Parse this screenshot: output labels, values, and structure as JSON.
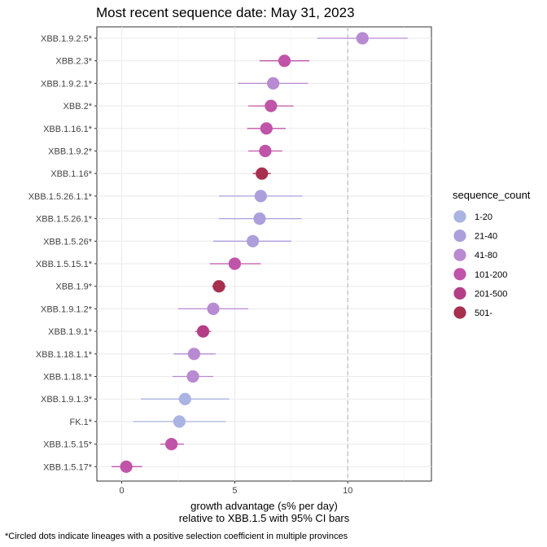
{
  "chart_data": {
    "type": "scatter",
    "title": "Most recent sequence date: May 31, 2023",
    "xlabel_line1": "growth advantage (s% per day)",
    "xlabel_line2": "relative to  XBB.1.5  with 95% CI bars",
    "xlim": [
      -1.1,
      13.7
    ],
    "x_ticks": [
      0,
      5,
      10
    ],
    "reference_line_x": 10,
    "grid": true,
    "legend_position": "right",
    "legend_title": "sequence_count",
    "legend": [
      {
        "label": "1-20",
        "color": "#aab4e2"
      },
      {
        "label": "21-40",
        "color": "#ad9fdc"
      },
      {
        "label": "41-80",
        "color": "#b88ad2"
      },
      {
        "label": "101-200",
        "color": "#c054a8"
      },
      {
        "label": "201-500",
        "color": "#b43e86"
      },
      {
        "label": "501-",
        "color": "#a6304e"
      }
    ],
    "points": [
      {
        "lineage": "XBB.1.9.2.5*",
        "value": 10.65,
        "lo": 8.65,
        "hi": 12.65,
        "group": 2
      },
      {
        "lineage": "XBB.2.3*",
        "value": 7.2,
        "lo": 6.1,
        "hi": 8.3,
        "group": 3
      },
      {
        "lineage": "XBB.1.9.2.1*",
        "value": 6.7,
        "lo": 5.15,
        "hi": 8.25,
        "group": 2
      },
      {
        "lineage": "XBB.2*",
        "value": 6.6,
        "lo": 5.6,
        "hi": 7.6,
        "group": 3
      },
      {
        "lineage": "XBB.1.16.1*",
        "value": 6.4,
        "lo": 5.55,
        "hi": 7.25,
        "group": 3
      },
      {
        "lineage": "XBB.1.9.2*",
        "value": 6.35,
        "lo": 5.6,
        "hi": 7.1,
        "group": 3
      },
      {
        "lineage": "XBB.1.16*",
        "value": 6.2,
        "lo": 5.8,
        "hi": 6.6,
        "group": 5
      },
      {
        "lineage": "XBB.1.5.26.1.1*",
        "value": 6.15,
        "lo": 4.3,
        "hi": 8.0,
        "group": 1
      },
      {
        "lineage": "XBB.1.5.26.1*",
        "value": 6.1,
        "lo": 4.3,
        "hi": 7.95,
        "group": 1
      },
      {
        "lineage": "XBB.1.5.26*",
        "value": 5.8,
        "lo": 4.05,
        "hi": 7.5,
        "group": 1
      },
      {
        "lineage": "XBB.1.5.15.1*",
        "value": 5.0,
        "lo": 3.9,
        "hi": 6.15,
        "group": 3
      },
      {
        "lineage": "XBB.1.9*",
        "value": 4.3,
        "lo": 4.0,
        "hi": 4.6,
        "group": 5
      },
      {
        "lineage": "XBB.1.9.1.2*",
        "value": 4.05,
        "lo": 2.5,
        "hi": 5.6,
        "group": 2
      },
      {
        "lineage": "XBB.1.9.1*",
        "value": 3.6,
        "lo": 3.25,
        "hi": 3.95,
        "group": 4
      },
      {
        "lineage": "XBB.1.18.1.1*",
        "value": 3.2,
        "lo": 2.3,
        "hi": 4.15,
        "group": 2
      },
      {
        "lineage": "XBB.1.18.1*",
        "value": 3.15,
        "lo": 2.25,
        "hi": 4.05,
        "group": 2
      },
      {
        "lineage": "XBB.1.9.1.3*",
        "value": 2.8,
        "lo": 0.85,
        "hi": 4.75,
        "group": 0
      },
      {
        "lineage": "FK.1*",
        "value": 2.55,
        "lo": 0.5,
        "hi": 4.6,
        "group": 0
      },
      {
        "lineage": "XBB.1.5.15*",
        "value": 2.2,
        "lo": 1.7,
        "hi": 2.75,
        "group": 3
      },
      {
        "lineage": "XBB.1.5.17*",
        "value": 0.2,
        "lo": -0.45,
        "hi": 0.9,
        "group": 3
      }
    ]
  },
  "footnote": "*Circled dots indicate lineages with a positive selection coefficient in multiple provinces"
}
